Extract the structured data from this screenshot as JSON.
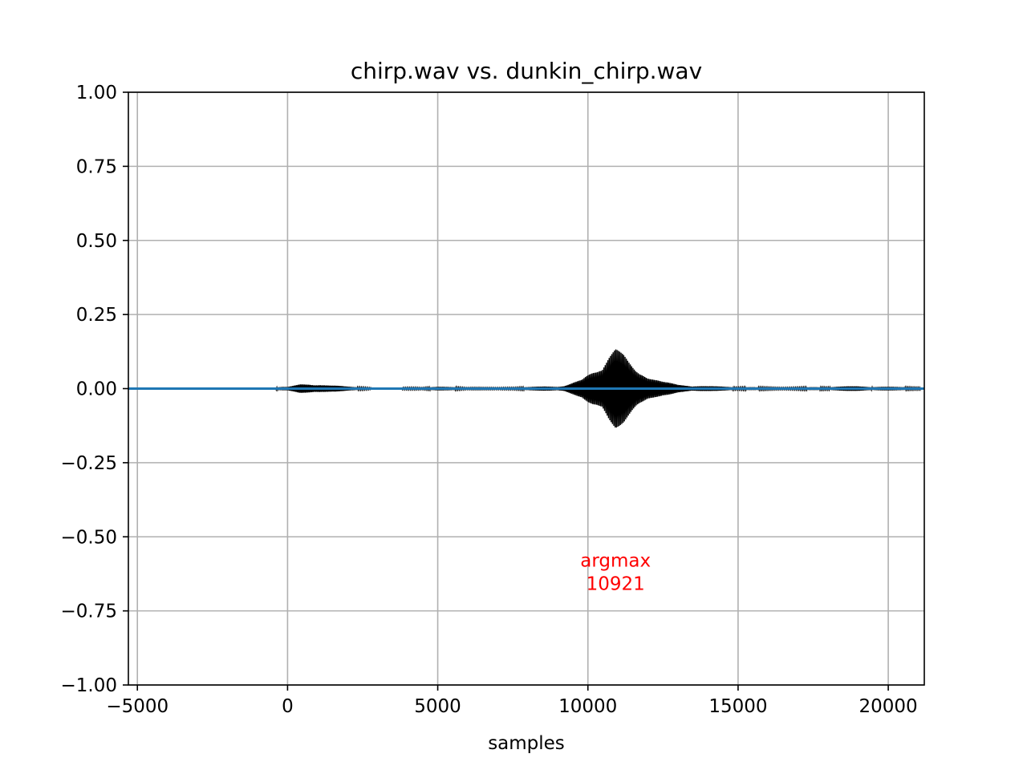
{
  "chart_data": {
    "type": "line",
    "title": "chirp.wav vs. dunkin_chirp.wav",
    "xlabel": "samples",
    "ylabel": "",
    "xlim": [
      -5300,
      21200
    ],
    "ylim": [
      -1.0,
      1.0
    ],
    "xticks": [
      -5000,
      0,
      5000,
      10000,
      15000,
      20000
    ],
    "xtick_labels": [
      "−5000",
      "0",
      "5000",
      "10000",
      "15000",
      "20000"
    ],
    "yticks": [
      1.0,
      0.75,
      0.5,
      0.25,
      0.0,
      -0.25,
      -0.5,
      -0.75,
      -1.0
    ],
    "ytick_labels": [
      "1.00",
      "0.75",
      "0.50",
      "0.25",
      "0.00",
      "−0.25",
      "−0.50",
      "−0.75",
      "−1.00"
    ],
    "grid": true,
    "series": [
      {
        "color": "#000000",
        "style": "oscillating envelope",
        "segments": [
          {
            "x_start": -400,
            "x_end": 2800,
            "envelope": [
              [
                -400,
                0.004
              ],
              [
                0,
                0.01
              ],
              [
                400,
                0.016
              ],
              [
                900,
                0.012
              ],
              [
                1500,
                0.018
              ],
              [
                2000,
                0.01
              ],
              [
                2800,
                0.004
              ]
            ]
          },
          {
            "x_start": 3800,
            "x_end": 21100,
            "envelope": [
              [
                3800,
                0.003
              ],
              [
                5000,
                0.006
              ],
              [
                6500,
                0.004
              ],
              [
                8000,
                0.006
              ],
              [
                9200,
                0.01
              ],
              [
                9800,
                0.03
              ],
              [
                10300,
                0.08
              ],
              [
                10700,
                0.15
              ],
              [
                10921,
                0.18
              ],
              [
                11200,
                0.16
              ],
              [
                11600,
                0.1
              ],
              [
                12000,
                0.06
              ],
              [
                12500,
                0.03
              ],
              [
                13000,
                0.015
              ],
              [
                14000,
                0.008
              ],
              [
                15000,
                0.006
              ],
              [
                17000,
                0.005
              ],
              [
                19000,
                0.008
              ],
              [
                21100,
                0.006
              ]
            ]
          }
        ]
      },
      {
        "color": "#1f77b4",
        "style": "flat line",
        "x": [
          -5300,
          21200
        ],
        "y": [
          0.0,
          0.0
        ]
      }
    ],
    "annotation": {
      "line1": "argmax",
      "line2": "10921",
      "x": 10921,
      "y": -0.62,
      "color": "#ff0000"
    }
  }
}
